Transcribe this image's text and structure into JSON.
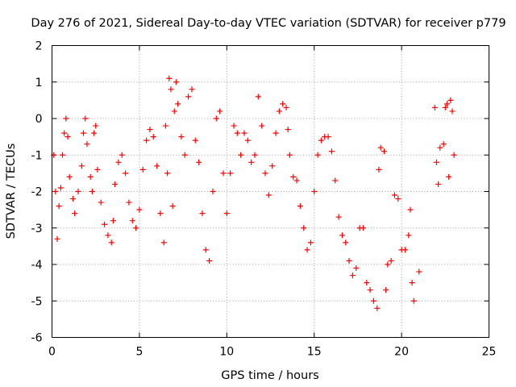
{
  "chart_data": {
    "type": "scatter",
    "title": "Day 276 of 2021, Sidereal Day-to-day VTEC variation (SDTVAR) for receiver p779",
    "xlabel": "GPS time / hours",
    "ylabel": "SDTVAR / TECUs",
    "xlim": [
      0,
      25
    ],
    "ylim": [
      -6,
      2
    ],
    "xticks": [
      0,
      5,
      10,
      15,
      20,
      25
    ],
    "yticks": [
      -6,
      -5,
      -4,
      -3,
      -2,
      -1,
      0,
      1,
      2
    ],
    "grid": true,
    "marker": "+",
    "color": "#ff0000",
    "series": [
      {
        "name": "SDTVAR",
        "points": [
          [
            0.1,
            -1.0
          ],
          [
            0.2,
            -2.0
          ],
          [
            0.3,
            -3.3
          ],
          [
            0.4,
            -2.4
          ],
          [
            0.5,
            -1.9
          ],
          [
            0.6,
            -1.0
          ],
          [
            0.7,
            -0.4
          ],
          [
            0.8,
            0.0
          ],
          [
            0.9,
            -0.5
          ],
          [
            1.0,
            -1.6
          ],
          [
            1.2,
            -2.2
          ],
          [
            1.3,
            -2.6
          ],
          [
            1.5,
            -2.0
          ],
          [
            1.7,
            -1.3
          ],
          [
            1.8,
            -0.4
          ],
          [
            1.9,
            0.0
          ],
          [
            2.0,
            -0.7
          ],
          [
            2.2,
            -1.6
          ],
          [
            2.3,
            -2.0
          ],
          [
            2.4,
            -0.4
          ],
          [
            2.5,
            -0.2
          ],
          [
            2.6,
            -1.4
          ],
          [
            2.8,
            -2.3
          ],
          [
            3.0,
            -2.9
          ],
          [
            3.2,
            -3.2
          ],
          [
            3.4,
            -3.4
          ],
          [
            3.5,
            -2.8
          ],
          [
            3.6,
            -1.8
          ],
          [
            3.8,
            -1.2
          ],
          [
            4.0,
            -1.0
          ],
          [
            4.2,
            -1.5
          ],
          [
            4.4,
            -2.3
          ],
          [
            4.6,
            -2.8
          ],
          [
            4.8,
            -3.0
          ],
          [
            5.0,
            -2.5
          ],
          [
            5.2,
            -1.4
          ],
          [
            5.4,
            -0.6
          ],
          [
            5.6,
            -0.3
          ],
          [
            5.8,
            -0.5
          ],
          [
            6.0,
            -1.3
          ],
          [
            6.2,
            -2.6
          ],
          [
            6.4,
            -3.4
          ],
          [
            6.5,
            -0.2
          ],
          [
            6.6,
            -1.5
          ],
          [
            6.7,
            1.1
          ],
          [
            6.8,
            0.8
          ],
          [
            6.9,
            -2.4
          ],
          [
            7.0,
            0.2
          ],
          [
            7.1,
            1.0
          ],
          [
            7.2,
            0.4
          ],
          [
            7.4,
            -0.5
          ],
          [
            7.6,
            -1.0
          ],
          [
            7.8,
            0.6
          ],
          [
            8.0,
            0.8
          ],
          [
            8.2,
            -0.6
          ],
          [
            8.4,
            -1.2
          ],
          [
            8.6,
            -2.6
          ],
          [
            8.8,
            -3.6
          ],
          [
            9.0,
            -3.9
          ],
          [
            9.2,
            -2.0
          ],
          [
            9.4,
            0.0
          ],
          [
            9.6,
            0.2
          ],
          [
            9.8,
            -1.5
          ],
          [
            10.0,
            -2.6
          ],
          [
            10.2,
            -1.5
          ],
          [
            10.4,
            -0.2
          ],
          [
            10.6,
            -0.4
          ],
          [
            10.8,
            -1.0
          ],
          [
            11.0,
            -0.4
          ],
          [
            11.2,
            -0.6
          ],
          [
            11.4,
            -1.2
          ],
          [
            11.6,
            -1.0
          ],
          [
            11.8,
            0.6
          ],
          [
            12.0,
            -0.2
          ],
          [
            12.2,
            -1.5
          ],
          [
            12.4,
            -2.1
          ],
          [
            12.6,
            -1.3
          ],
          [
            12.8,
            -0.4
          ],
          [
            13.0,
            0.2
          ],
          [
            13.2,
            0.4
          ],
          [
            13.4,
            0.3
          ],
          [
            13.5,
            -0.3
          ],
          [
            13.6,
            -1.0
          ],
          [
            13.8,
            -1.6
          ],
          [
            14.0,
            -1.7
          ],
          [
            14.2,
            -2.4
          ],
          [
            14.4,
            -3.0
          ],
          [
            14.6,
            -3.6
          ],
          [
            14.8,
            -3.4
          ],
          [
            15.0,
            -2.0
          ],
          [
            15.2,
            -1.0
          ],
          [
            15.4,
            -0.6
          ],
          [
            15.6,
            -0.5
          ],
          [
            15.8,
            -0.5
          ],
          [
            16.0,
            -0.9
          ],
          [
            16.2,
            -1.7
          ],
          [
            16.4,
            -2.7
          ],
          [
            16.6,
            -3.2
          ],
          [
            16.8,
            -3.4
          ],
          [
            17.0,
            -3.9
          ],
          [
            17.2,
            -4.3
          ],
          [
            17.4,
            -4.1
          ],
          [
            17.6,
            -3.0
          ],
          [
            17.8,
            -3.0
          ],
          [
            18.0,
            -4.5
          ],
          [
            18.2,
            -4.7
          ],
          [
            18.4,
            -5.0
          ],
          [
            18.6,
            -5.2
          ],
          [
            18.7,
            -1.4
          ],
          [
            18.8,
            -0.8
          ],
          [
            19.0,
            -0.9
          ],
          [
            19.1,
            -4.7
          ],
          [
            19.2,
            -4.0
          ],
          [
            19.4,
            -3.9
          ],
          [
            19.6,
            -2.1
          ],
          [
            19.8,
            -2.2
          ],
          [
            20.0,
            -3.6
          ],
          [
            20.2,
            -3.6
          ],
          [
            20.4,
            -3.2
          ],
          [
            20.5,
            -2.5
          ],
          [
            20.6,
            -4.5
          ],
          [
            20.7,
            -5.0
          ],
          [
            21.0,
            -4.2
          ],
          [
            21.9,
            0.3
          ],
          [
            22.0,
            -1.2
          ],
          [
            22.1,
            -1.8
          ],
          [
            22.2,
            -0.8
          ],
          [
            22.4,
            -0.7
          ],
          [
            22.5,
            0.3
          ],
          [
            22.6,
            0.4
          ],
          [
            22.7,
            -1.6
          ],
          [
            22.8,
            0.5
          ],
          [
            22.9,
            0.2
          ],
          [
            23.0,
            -1.0
          ]
        ]
      }
    ]
  }
}
